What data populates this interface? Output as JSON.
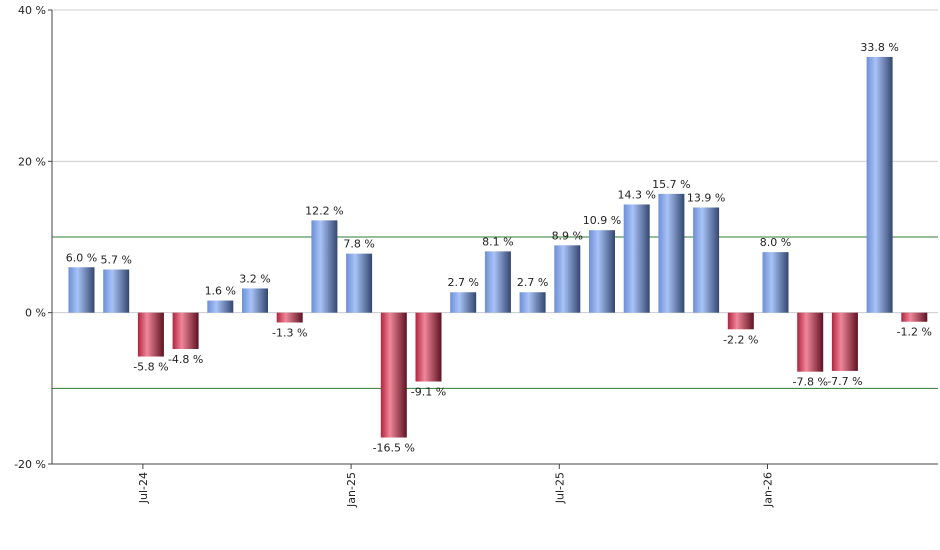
{
  "chart_data": {
    "type": "bar",
    "title": "",
    "xlabel": "",
    "ylabel": "",
    "ylim": [
      -20,
      40
    ],
    "y_ticks": [
      {
        "value": 40,
        "label": "40 %"
      },
      {
        "value": 20,
        "label": "20 %"
      },
      {
        "value": 0,
        "label": "0 %"
      },
      {
        "value": -20,
        "label": "-20 %"
      }
    ],
    "x_ticks": [
      {
        "index": 2,
        "label": "Jul-24"
      },
      {
        "index": 8,
        "label": "Jan-25"
      },
      {
        "index": 14,
        "label": "Jul-25"
      },
      {
        "index": 20,
        "label": "Jan-26"
      }
    ],
    "reference_lines": [
      10,
      -10
    ],
    "grid": true,
    "values": [
      6.0,
      5.7,
      -5.8,
      -4.8,
      1.6,
      3.2,
      -1.3,
      12.2,
      7.8,
      -16.5,
      -9.1,
      2.7,
      8.1,
      2.7,
      8.9,
      10.9,
      14.3,
      15.7,
      13.9,
      -2.2,
      8.0,
      -7.8,
      -7.7,
      33.8,
      -1.2
    ],
    "data_labels": [
      "6.0 %",
      "5.7 %",
      "-5.8 %",
      "-4.8 %",
      "1.6 %",
      "3.2 %",
      "-1.3 %",
      "12.2 %",
      "7.8 %",
      "-16.5 %",
      "-9.1 %",
      "2.7 %",
      "8.1 %",
      "2.7 %",
      "8.9 %",
      "10.9 %",
      "14.3 %",
      "15.7 %",
      "13.9 %",
      "-2.2 %",
      "8.0 %",
      "-7.8 %",
      "-7.7 %",
      "33.8 %",
      "-1.2 %"
    ],
    "colors": {
      "positive": "#7a9ee6",
      "negative": "#c8324f",
      "reference_line": "#2e7d32",
      "grid": "#cccccc",
      "axis": "#444444"
    }
  }
}
